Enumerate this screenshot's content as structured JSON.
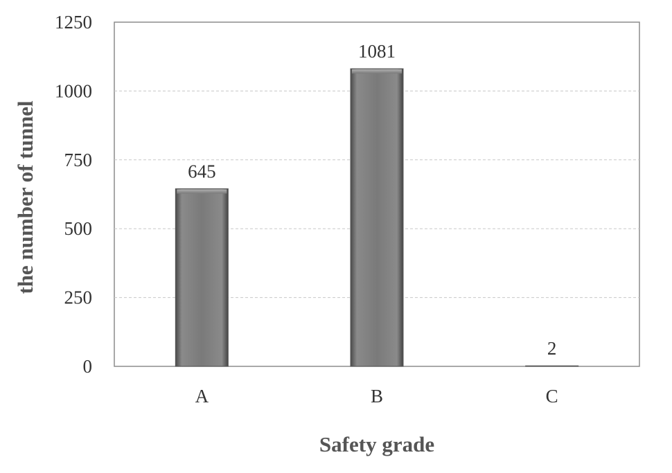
{
  "chart_data": {
    "type": "bar",
    "title": "",
    "xlabel": "Safety grade",
    "ylabel": "the number of tunnel",
    "categories": [
      "A",
      "B",
      "C"
    ],
    "values": [
      645,
      1081,
      2
    ],
    "data_labels": [
      "645",
      "1081",
      "2"
    ],
    "ylim": [
      0,
      1250
    ],
    "yticks": [
      0,
      250,
      500,
      750,
      1000,
      1250
    ],
    "grid": true,
    "legend": "none",
    "bar_color": "#7a7a7a"
  }
}
